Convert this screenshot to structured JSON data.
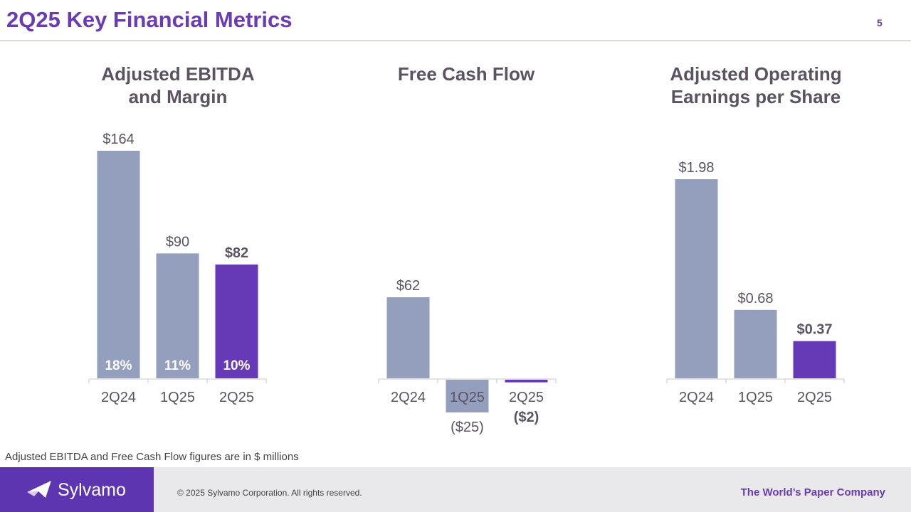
{
  "slide": {
    "title": "2Q25 Key Financial Metrics",
    "page_number": "5",
    "footnote": "Adjusted EBITDA and Free Cash Flow figures are in $ millions"
  },
  "footer": {
    "brand": "Sylvamo",
    "copyright": "© 2025 Sylvamo Corporation. All rights reserved.",
    "tagline": "The World’s Paper Company"
  },
  "colors": {
    "prior_bar": "#949fbe",
    "current_bar": "#6639b7",
    "title": "#6a3bb5",
    "label": "#5b5361"
  },
  "chart_data": [
    {
      "type": "bar",
      "title": [
        "Adjusted EBITDA",
        "and Margin"
      ],
      "categories": [
        "2Q24",
        "1Q25",
        "2Q25"
      ],
      "values": [
        164,
        90,
        82
      ],
      "value_labels": [
        "$164",
        "$90",
        "$82"
      ],
      "margin_labels": [
        "18%",
        "11%",
        "10%"
      ],
      "highlight_index": 2,
      "units": "$ millions",
      "ylim": [
        0,
        164
      ]
    },
    {
      "type": "bar",
      "title": [
        "Free Cash Flow"
      ],
      "categories": [
        "2Q24",
        "1Q25",
        "2Q25"
      ],
      "values": [
        62,
        -25,
        -2
      ],
      "value_labels": [
        "$62",
        "($25)",
        "($2)"
      ],
      "highlight_index": 2,
      "units": "$ millions",
      "ylim": [
        -25,
        62
      ]
    },
    {
      "type": "bar",
      "title": [
        "Adjusted Operating",
        "Earnings per Share"
      ],
      "categories": [
        "2Q24",
        "1Q25",
        "2Q25"
      ],
      "values": [
        1.98,
        0.68,
        0.37
      ],
      "value_labels": [
        "$1.98",
        "$0.68",
        "$0.37"
      ],
      "highlight_index": 2,
      "units": "$ per share",
      "ylim": [
        0,
        1.98
      ]
    }
  ]
}
